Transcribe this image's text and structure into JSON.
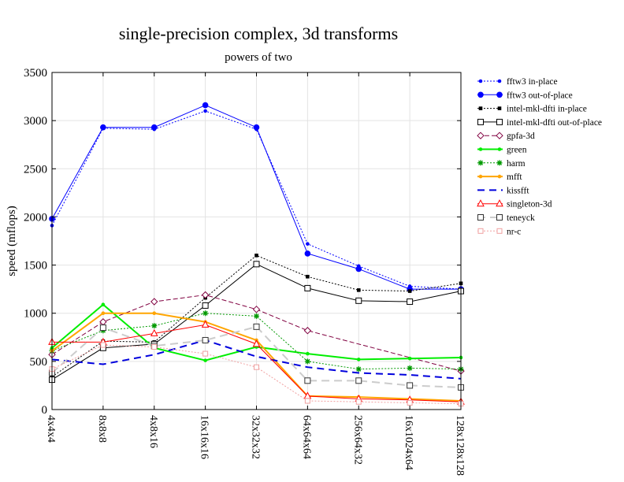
{
  "chart_data": {
    "type": "line",
    "title": "single-precision complex, 3d transforms",
    "subtitle": "powers of two",
    "xlabel": "",
    "ylabel": "speed (mflops)",
    "ylim": [
      0,
      3500
    ],
    "yticks": [
      0,
      500,
      1000,
      1500,
      2000,
      2500,
      3000,
      3500
    ],
    "grid": true,
    "legend_position": "right-outside",
    "categories": [
      "4x4x4",
      "8x8x8",
      "4x8x16",
      "16x16x16",
      "32x32x32",
      "64x64x64",
      "256x64x32",
      "16x1024x64",
      "128x128x128"
    ],
    "series": [
      {
        "name": "fftw3 in-place",
        "color": "#0000ff",
        "dash": "2,2",
        "marker": "dot",
        "values": [
          1910,
          2920,
          2910,
          3100,
          2910,
          1720,
          1490,
          1280,
          1250
        ]
      },
      {
        "name": "fftw3 out-of-place",
        "color": "#0000ff",
        "dash": "",
        "marker": "dot-large",
        "values": [
          1980,
          2930,
          2930,
          3160,
          2930,
          1620,
          1460,
          1250,
          1250
        ]
      },
      {
        "name": "intel-mkl-dfti in-place",
        "color": "#000000",
        "dash": "2,2",
        "marker": "square-filled",
        "values": [
          340,
          710,
          700,
          1160,
          1600,
          1380,
          1240,
          1230,
          1310
        ]
      },
      {
        "name": "intel-mkl-dfti out-of-place",
        "color": "#000000",
        "dash": "",
        "marker": "square-open",
        "values": [
          310,
          640,
          680,
          1080,
          1510,
          1260,
          1130,
          1120,
          1230
        ]
      },
      {
        "name": "gpfa-3d",
        "color": "#800040",
        "dash": "6,3",
        "marker": "diamond",
        "values": [
          570,
          910,
          1120,
          1190,
          1040,
          820,
          null,
          null,
          400
        ]
      },
      {
        "name": "green",
        "color": "#00ee00",
        "dash": "",
        "marker": "dot",
        "width": 2,
        "values": [
          640,
          1090,
          640,
          510,
          650,
          580,
          520,
          530,
          540
        ]
      },
      {
        "name": "harm",
        "color": "#009900",
        "dash": "2,2",
        "marker": "star",
        "values": [
          610,
          820,
          870,
          1000,
          970,
          500,
          420,
          430,
          420
        ]
      },
      {
        "name": "mfft",
        "color": "#ffa500",
        "dash": "",
        "marker": "dot",
        "width": 2,
        "values": [
          610,
          1000,
          1000,
          910,
          720,
          140,
          130,
          110,
          90
        ]
      },
      {
        "name": "kissfft",
        "color": "#0000dd",
        "dash": "9,6",
        "marker": "none",
        "width": 2,
        "values": [
          520,
          470,
          570,
          720,
          550,
          440,
          380,
          360,
          320
        ]
      },
      {
        "name": "singleton-3d",
        "color": "#ff0000",
        "dash": "",
        "marker": "triangle",
        "values": [
          700,
          700,
          790,
          880,
          680,
          140,
          110,
          100,
          80
        ]
      },
      {
        "name": "teneyck",
        "color": "#cccccc",
        "dash": "10,6",
        "marker": "square-open-gray",
        "width": 2,
        "values": [
          380,
          850,
          660,
          720,
          860,
          300,
          300,
          250,
          230
        ]
      },
      {
        "name": "nr-c",
        "color": "#f0a0a0",
        "dash": "2,2",
        "marker": "square-open-pink",
        "values": [
          420,
          670,
          650,
          580,
          440,
          90,
          80,
          70,
          60
        ]
      }
    ]
  }
}
